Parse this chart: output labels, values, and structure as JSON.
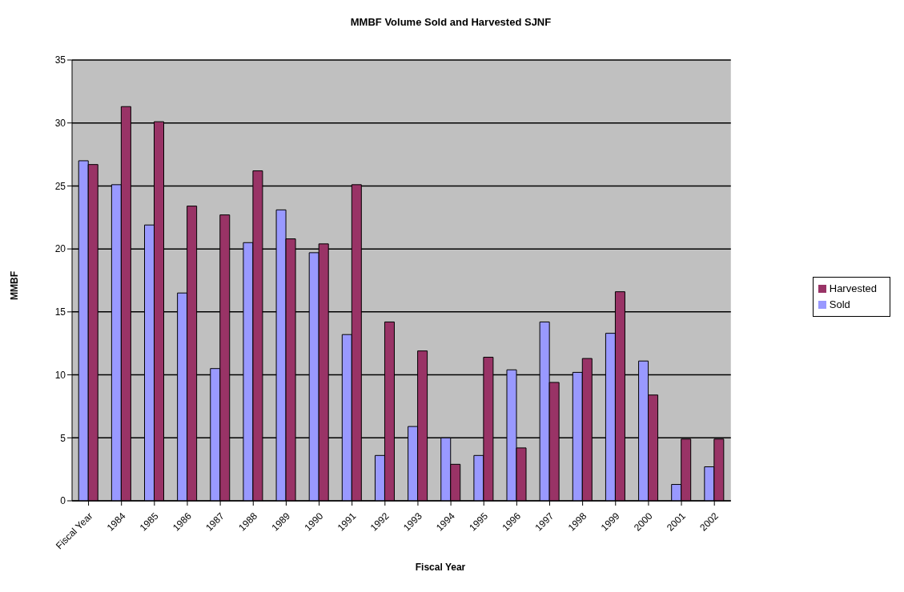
{
  "chart_data": {
    "type": "bar",
    "title": "MMBF Volume Sold and Harvested SJNF",
    "xlabel": "Fiscal Year",
    "ylabel": "MMBF",
    "categories": [
      "Fiscal Year",
      "1984",
      "1985",
      "1986",
      "1987",
      "1988",
      "1989",
      "1990",
      "1991",
      "1992",
      "1993",
      "1994",
      "1995",
      "1996",
      "1997",
      "1998",
      "1999",
      "2000",
      "2001",
      "2002"
    ],
    "series": [
      {
        "name": "Sold",
        "color": "#9999ff",
        "values": [
          27,
          25.1,
          21.9,
          16.5,
          10.5,
          20.5,
          23.1,
          19.7,
          13.2,
          3.6,
          5.9,
          5.0,
          3.6,
          10.4,
          14.2,
          10.2,
          13.3,
          11.1,
          1.3,
          2.7
        ]
      },
      {
        "name": "Harvested",
        "color": "#993366",
        "values": [
          26.7,
          31.3,
          30.1,
          23.4,
          22.7,
          26.2,
          20.8,
          20.4,
          25.1,
          14.2,
          11.9,
          2.9,
          11.4,
          4.2,
          9.4,
          11.3,
          16.6,
          8.4,
          4.9,
          4.9
        ]
      }
    ],
    "ylim": [
      0,
      35
    ],
    "yticks": [
      0,
      5,
      10,
      15,
      20,
      25,
      30,
      35
    ],
    "grid": "y",
    "legend": "right"
  }
}
